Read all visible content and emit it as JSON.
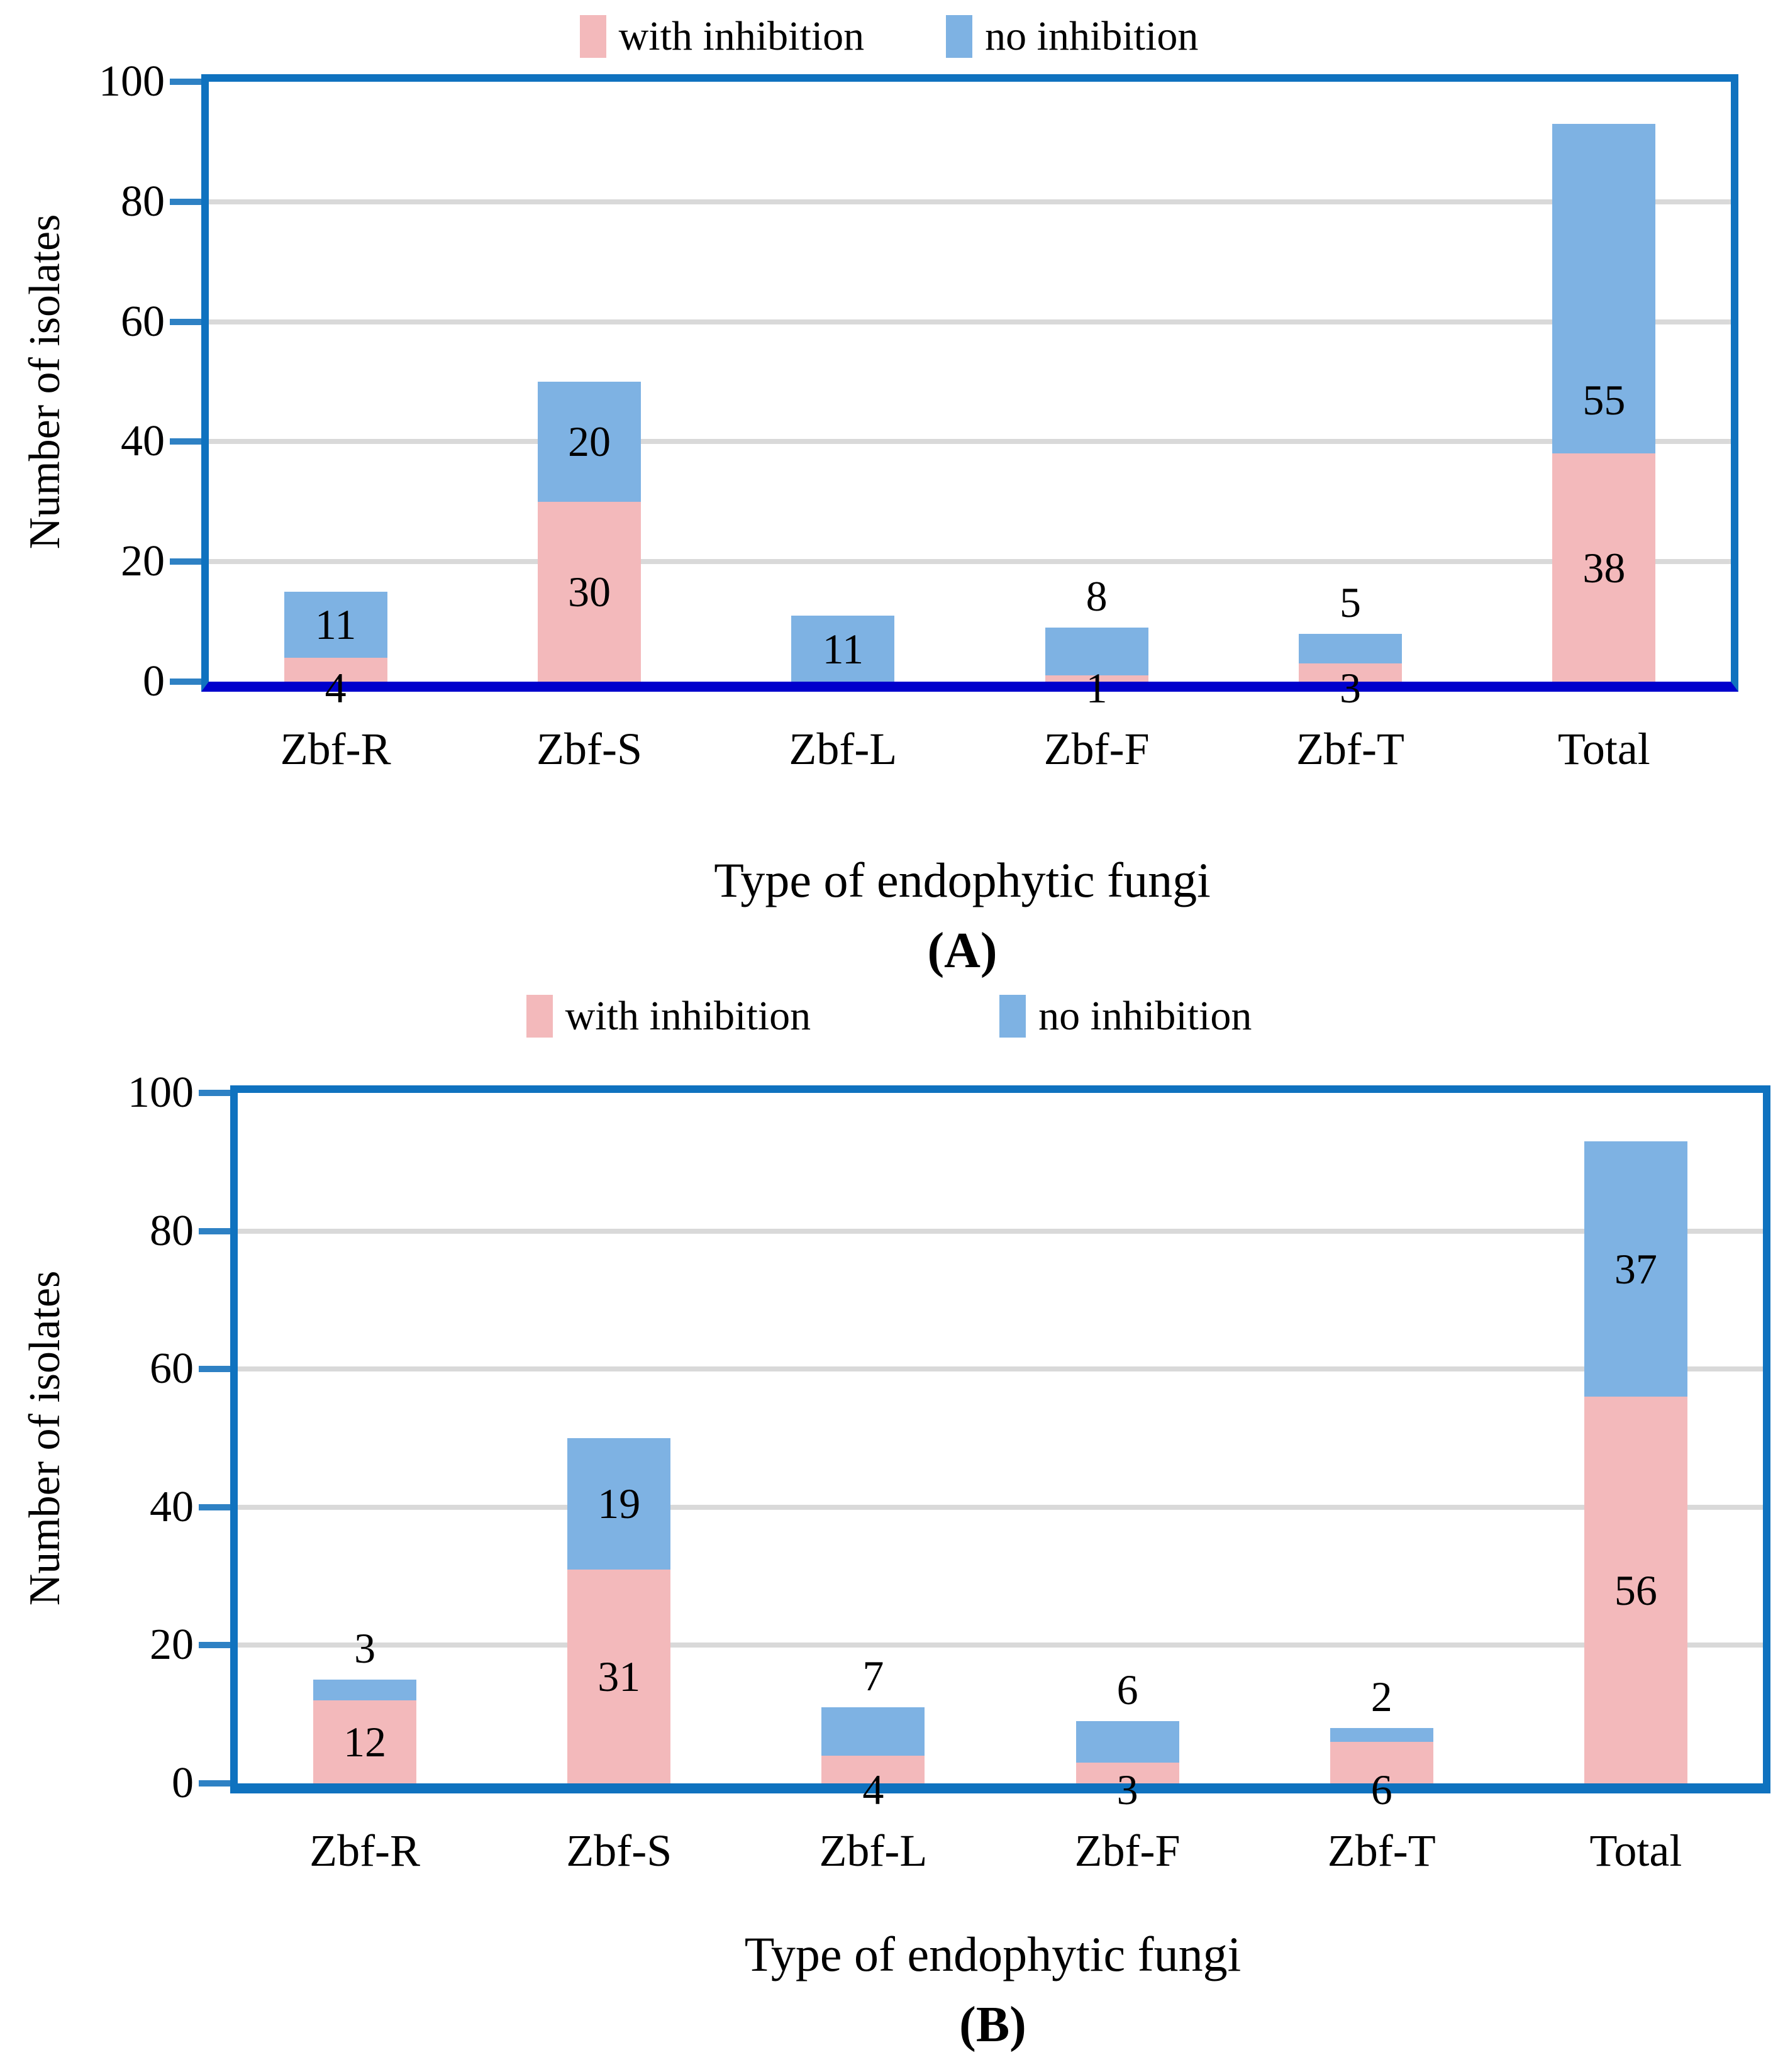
{
  "page": {
    "background": "#FFFFFF"
  },
  "chart_data": [
    {
      "type": "bar",
      "stacked": true,
      "panel_label": "(A)",
      "xlabel": "Type of endophytic fungi",
      "ylabel": "Number of isolates",
      "ylim": [
        0,
        100
      ],
      "yticks": [
        0,
        20,
        40,
        60,
        80,
        100
      ],
      "grid": true,
      "legend_position": "top",
      "categories": [
        "Zbf-R",
        "Zbf-S",
        "Zbf-L",
        "Zbf-F",
        "Zbf-T",
        "Total"
      ],
      "series": [
        {
          "name": "with inhibition",
          "color": "#F3B9BB",
          "values": [
            4,
            30,
            0,
            1,
            3,
            38
          ],
          "label_pos": [
            "base",
            "center",
            "none",
            "base",
            "base",
            "center"
          ]
        },
        {
          "name": "no inhibition",
          "color": "#7EB2E3",
          "values": [
            11,
            20,
            11,
            8,
            5,
            55
          ],
          "label_pos": [
            "center",
            "center",
            "center",
            "above",
            "above",
            "inside-base"
          ]
        }
      ],
      "frame_color": "#0F72BF",
      "baseline_color": "#0000CC",
      "gridline_color": "#D9D9D9"
    },
    {
      "type": "bar",
      "stacked": true,
      "panel_label": "(B)",
      "xlabel": "Type of endophytic fungi",
      "ylabel": "Number of isolates",
      "ylim": [
        0,
        100
      ],
      "yticks": [
        0,
        20,
        40,
        60,
        80,
        100
      ],
      "grid": true,
      "legend_position": "top",
      "categories": [
        "Zbf-R",
        "Zbf-S",
        "Zbf-L",
        "Zbf-F",
        "Zbf-T",
        "Total"
      ],
      "series": [
        {
          "name": "with inhibition",
          "color": "#F3B9BB",
          "values": [
            12,
            31,
            4,
            3,
            6,
            56
          ],
          "label_pos": [
            "center",
            "center",
            "base",
            "base",
            "base",
            "center"
          ]
        },
        {
          "name": "no inhibition",
          "color": "#7EB2E3",
          "values": [
            3,
            19,
            7,
            6,
            2,
            37
          ],
          "label_pos": [
            "above",
            "center",
            "above",
            "above",
            "above",
            "center"
          ]
        }
      ],
      "frame_color": "#0F72BF",
      "baseline_color": "#0F72BF",
      "gridline_color": "#D9D9D9"
    }
  ]
}
